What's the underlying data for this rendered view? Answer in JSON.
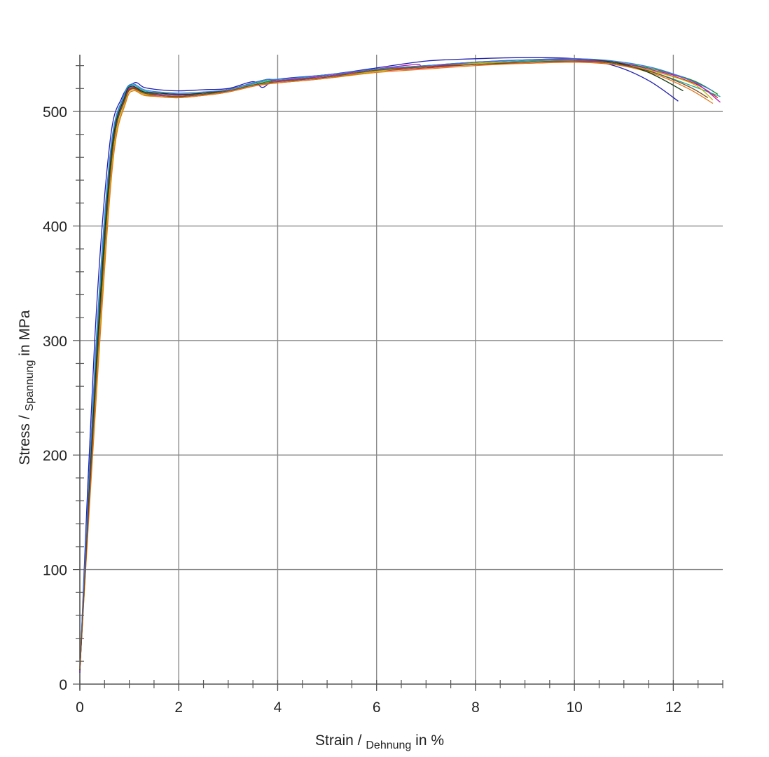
{
  "chart_data": {
    "type": "line",
    "title": "",
    "xlabel": {
      "main": "Strain /",
      "sub": "Dehnung",
      "unit": "in %"
    },
    "ylabel": {
      "main": "Stress /",
      "sub": "Spannung",
      "unit": "in MPa"
    },
    "xlim": [
      0,
      13
    ],
    "ylim": [
      0,
      550
    ],
    "x_ticks": [
      "0",
      "2",
      "4",
      "6",
      "8",
      "10",
      "12"
    ],
    "y_ticks": [
      "0",
      "100",
      "200",
      "300",
      "400",
      "500"
    ],
    "grid": true,
    "legend": "none",
    "series": [
      {
        "color": "#1f1fb0",
        "values": [
          [
            0,
            10
          ],
          [
            0.3,
            300
          ],
          [
            0.6,
            470
          ],
          [
            0.85,
            512
          ],
          [
            1.1,
            525
          ],
          [
            1.3,
            521
          ],
          [
            1.6,
            519
          ],
          [
            2,
            518
          ],
          [
            2.5,
            519
          ],
          [
            3,
            520
          ],
          [
            3.5,
            526
          ],
          [
            3.7,
            521
          ],
          [
            4,
            528
          ],
          [
            5,
            532
          ],
          [
            6,
            538
          ],
          [
            7,
            544
          ],
          [
            8,
            546
          ],
          [
            9,
            547
          ],
          [
            10,
            546
          ],
          [
            10.8,
            540
          ],
          [
            11.5,
            527
          ],
          [
            12.1,
            509
          ]
        ]
      },
      {
        "color": "#d62020",
        "values": [
          [
            0,
            12
          ],
          [
            0.35,
            280
          ],
          [
            0.65,
            460
          ],
          [
            0.9,
            510
          ],
          [
            1.05,
            520
          ],
          [
            1.3,
            515
          ],
          [
            1.6,
            513
          ],
          [
            2,
            512
          ],
          [
            2.5,
            514
          ],
          [
            3,
            517
          ],
          [
            3.5,
            522
          ],
          [
            3.8,
            524
          ],
          [
            4,
            525
          ],
          [
            5,
            529
          ],
          [
            6,
            535
          ],
          [
            7,
            538
          ],
          [
            8,
            541
          ],
          [
            9,
            542
          ],
          [
            10,
            543
          ],
          [
            10.8,
            541
          ],
          [
            11.6,
            535
          ],
          [
            12.4,
            525
          ],
          [
            12.9,
            512
          ]
        ]
      },
      {
        "color": "#1a8a1a",
        "values": [
          [
            0,
            15
          ],
          [
            0.35,
            285
          ],
          [
            0.65,
            462
          ],
          [
            0.9,
            511
          ],
          [
            1.05,
            521
          ],
          [
            1.3,
            517
          ],
          [
            1.6,
            515
          ],
          [
            2,
            514
          ],
          [
            2.5,
            515
          ],
          [
            3,
            518
          ],
          [
            3.5,
            523
          ],
          [
            3.8,
            526
          ],
          [
            4,
            526
          ],
          [
            5,
            530
          ],
          [
            6,
            536
          ],
          [
            7,
            539
          ],
          [
            8,
            542
          ],
          [
            9,
            544
          ],
          [
            10,
            545
          ],
          [
            10.8,
            543
          ],
          [
            11.6,
            537
          ],
          [
            12.4,
            527
          ],
          [
            12.9,
            515
          ]
        ]
      },
      {
        "color": "#18a6a6",
        "values": [
          [
            0,
            14
          ],
          [
            0.33,
            290
          ],
          [
            0.63,
            465
          ],
          [
            0.88,
            512
          ],
          [
            1.05,
            523
          ],
          [
            1.3,
            518
          ],
          [
            1.6,
            516
          ],
          [
            2,
            515
          ],
          [
            2.5,
            516
          ],
          [
            3,
            518
          ],
          [
            3.5,
            524
          ],
          [
            3.8,
            527
          ],
          [
            4,
            527
          ],
          [
            5,
            531
          ],
          [
            5.6,
            533
          ],
          [
            6,
            536
          ],
          [
            7,
            539
          ],
          [
            8,
            542
          ],
          [
            9,
            544
          ],
          [
            10,
            545
          ],
          [
            10.8,
            542
          ],
          [
            11.6,
            534
          ],
          [
            12.4,
            522
          ],
          [
            12.95,
            513
          ]
        ]
      },
      {
        "color": "#c8b400",
        "values": [
          [
            0,
            13
          ],
          [
            0.36,
            278
          ],
          [
            0.66,
            458
          ],
          [
            0.92,
            509
          ],
          [
            1.06,
            519
          ],
          [
            1.3,
            515
          ],
          [
            1.6,
            514
          ],
          [
            2,
            513
          ],
          [
            2.5,
            515
          ],
          [
            3,
            518
          ],
          [
            3.5,
            523
          ],
          [
            3.8,
            525
          ],
          [
            4,
            526
          ],
          [
            5,
            530
          ],
          [
            6,
            535
          ],
          [
            6.6,
            538
          ],
          [
            7,
            539
          ],
          [
            8,
            542
          ],
          [
            9,
            543
          ],
          [
            10,
            544
          ],
          [
            10.8,
            542
          ],
          [
            11.6,
            535
          ],
          [
            12.4,
            524
          ],
          [
            12.8,
            510
          ]
        ]
      },
      {
        "color": "#b020b0",
        "values": [
          [
            0,
            11
          ],
          [
            0.34,
            284
          ],
          [
            0.64,
            463
          ],
          [
            0.9,
            511
          ],
          [
            1.06,
            521
          ],
          [
            1.3,
            516
          ],
          [
            1.6,
            515
          ],
          [
            2,
            514
          ],
          [
            2.5,
            516
          ],
          [
            3,
            519
          ],
          [
            3.5,
            525
          ],
          [
            3.8,
            528
          ],
          [
            4,
            527
          ],
          [
            5,
            531
          ],
          [
            6,
            537
          ],
          [
            6.8,
            541
          ],
          [
            7,
            539
          ],
          [
            8,
            543
          ],
          [
            9,
            545
          ],
          [
            10,
            545
          ],
          [
            10.8,
            543
          ],
          [
            11.6,
            536
          ],
          [
            12.4,
            526
          ],
          [
            12.95,
            508
          ]
        ]
      },
      {
        "color": "#e07820",
        "values": [
          [
            0,
            16
          ],
          [
            0.37,
            276
          ],
          [
            0.67,
            456
          ],
          [
            0.93,
            508
          ],
          [
            1.08,
            518
          ],
          [
            1.3,
            514
          ],
          [
            1.6,
            513
          ],
          [
            2,
            512
          ],
          [
            2.5,
            514
          ],
          [
            3,
            517
          ],
          [
            3.5,
            522
          ],
          [
            3.8,
            524
          ],
          [
            4,
            525
          ],
          [
            5,
            529
          ],
          [
            6,
            534
          ],
          [
            7,
            537
          ],
          [
            8,
            540
          ],
          [
            9,
            542
          ],
          [
            10,
            543
          ],
          [
            10.8,
            541
          ],
          [
            11.6,
            533
          ],
          [
            12.3,
            520
          ],
          [
            12.8,
            507
          ]
        ]
      },
      {
        "color": "#103a10",
        "values": [
          [
            0,
            12
          ],
          [
            0.34,
            286
          ],
          [
            0.64,
            464
          ],
          [
            0.9,
            512
          ],
          [
            1.05,
            522
          ],
          [
            1.3,
            517
          ],
          [
            1.6,
            516
          ],
          [
            2,
            515
          ],
          [
            2.5,
            516
          ],
          [
            3,
            519
          ],
          [
            3.5,
            525
          ],
          [
            3.8,
            528
          ],
          [
            4,
            528
          ],
          [
            5,
            532
          ],
          [
            6,
            537
          ],
          [
            7,
            540
          ],
          [
            8,
            543
          ],
          [
            9,
            545
          ],
          [
            10,
            546
          ],
          [
            10.8,
            543
          ],
          [
            11.5,
            534
          ],
          [
            12.2,
            518
          ]
        ]
      },
      {
        "color": "#3a7ae0",
        "values": [
          [
            0,
            14
          ],
          [
            0.32,
            292
          ],
          [
            0.62,
            466
          ],
          [
            0.88,
            513
          ],
          [
            1.05,
            524
          ],
          [
            1.3,
            519
          ],
          [
            1.6,
            517
          ],
          [
            2,
            516
          ],
          [
            2.5,
            517
          ],
          [
            3,
            519
          ],
          [
            3.5,
            525
          ],
          [
            3.8,
            528
          ],
          [
            4,
            528
          ],
          [
            5,
            532
          ],
          [
            6,
            537
          ],
          [
            7,
            540
          ],
          [
            8,
            543
          ],
          [
            9,
            545
          ],
          [
            10,
            546
          ],
          [
            10.8,
            544
          ],
          [
            11.6,
            538
          ],
          [
            12.3,
            528
          ],
          [
            12.8,
            518
          ]
        ]
      },
      {
        "color": "#7a4a1a",
        "values": [
          [
            0,
            13
          ],
          [
            0.35,
            282
          ],
          [
            0.65,
            461
          ],
          [
            0.91,
            510
          ],
          [
            1.07,
            520
          ],
          [
            1.3,
            516
          ],
          [
            1.6,
            514
          ],
          [
            2,
            513
          ],
          [
            2.5,
            515
          ],
          [
            3,
            518
          ],
          [
            3.5,
            523
          ],
          [
            3.8,
            525
          ],
          [
            4,
            526
          ],
          [
            5,
            530
          ],
          [
            6,
            536
          ],
          [
            7,
            539
          ],
          [
            8,
            541
          ],
          [
            9,
            543
          ],
          [
            10,
            544
          ],
          [
            10.8,
            542
          ],
          [
            11.6,
            534
          ],
          [
            12.3,
            522
          ],
          [
            12.7,
            512
          ]
        ]
      }
    ]
  }
}
